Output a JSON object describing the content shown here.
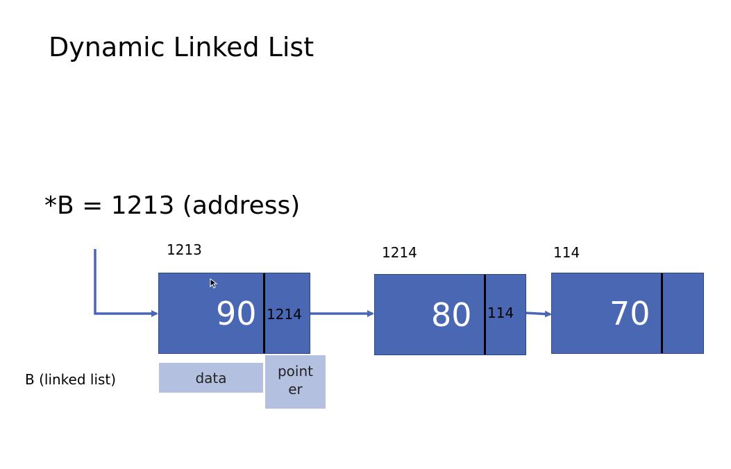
{
  "slide": {
    "title": "Dynamic Linked List",
    "pointer_statement": "*B = 1213 (address)",
    "list_label": "B (linked list)"
  },
  "nodes": [
    {
      "address": "1213",
      "data": "90",
      "next": "1214"
    },
    {
      "address": "1214",
      "data": "80",
      "next": "114"
    },
    {
      "address": "114",
      "data": "70",
      "next": ""
    }
  ],
  "legend": {
    "data_label": "data",
    "pointer_label_line1": "point",
    "pointer_label_line2": "er"
  },
  "colors": {
    "node_fill": "#4a67b4",
    "arrow": "#4a67b4",
    "legend_fill": "#b4c0e0"
  }
}
